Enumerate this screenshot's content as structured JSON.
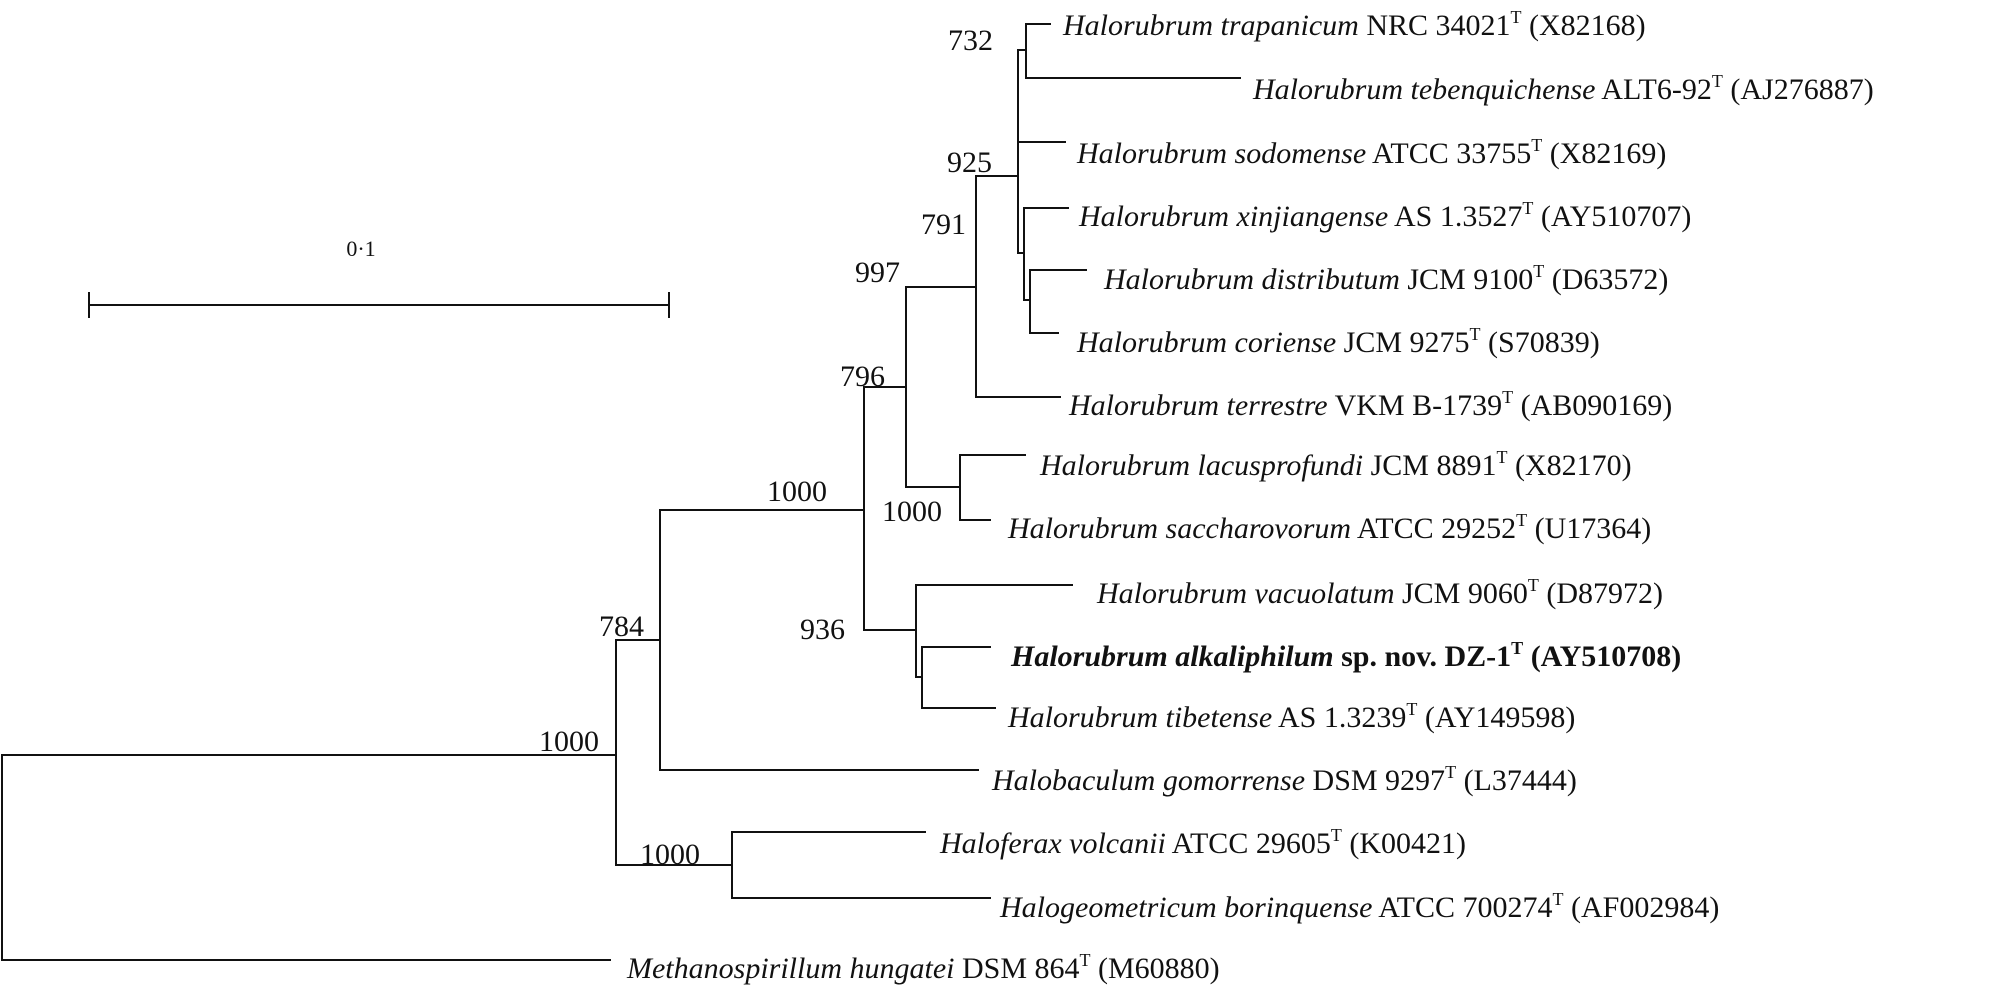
{
  "scale_bar": {
    "label": "0·1"
  },
  "taxa": [
    {
      "genus": "Halorubrum trapanicum",
      "strain": "NRC 34021",
      "sup": "T",
      "acc": "(X82168)"
    },
    {
      "genus": "Halorubrum tebenquichense",
      "strain": "ALT6-92",
      "sup": "T",
      "acc": "(AJ276887)"
    },
    {
      "genus": "Halorubrum sodomense",
      "strain": "ATCC 33755",
      "sup": "T",
      "acc": "(X82169)"
    },
    {
      "genus": "Halorubrum xinjiangense",
      "strain": "AS 1.3527",
      "sup": "T",
      "acc": "(AY510707)"
    },
    {
      "genus": "Halorubrum distributum",
      "strain": "JCM 9100",
      "sup": "T",
      "acc": "(D63572)"
    },
    {
      "genus": "Halorubrum coriense",
      "strain": "JCM 9275",
      "sup": "T",
      "acc": "(S70839)"
    },
    {
      "genus": "Halorubrum terrestre",
      "strain": "VKM B-1739",
      "sup": "T",
      "acc": "(AB090169)"
    },
    {
      "genus": "Halorubrum lacusprofundi",
      "strain": "JCM 8891",
      "sup": "T",
      "acc": "(X82170)"
    },
    {
      "genus": "Halorubrum saccharovorum",
      "strain": "ATCC 29252",
      "sup": "T",
      "acc": "(U17364)"
    },
    {
      "genus": "Halorubrum vacuolatum",
      "strain": "JCM 9060",
      "sup": "T",
      "acc": "(D87972)"
    },
    {
      "genus": "Halorubrum alkaliphilum",
      "strain": "sp. nov. DZ-1",
      "sup": "T",
      "acc": "(AY510708)",
      "bold": true
    },
    {
      "genus": "Halorubrum tibetense",
      "strain": "AS 1.3239",
      "sup": "T",
      "acc": "(AY149598)"
    },
    {
      "genus": "Halobaculum gomorrense",
      "strain": "DSM 9297",
      "sup": "T",
      "acc": "(L37444)"
    },
    {
      "genus": "Haloferax volcanii",
      "strain": "ATCC 29605",
      "sup": "T",
      "acc": "(K00421)"
    },
    {
      "genus": "Halogeometricum borinquense",
      "strain": "ATCC 700274",
      "sup": "T",
      "acc": "(AF002984)"
    },
    {
      "genus": "Methanospirillum hungatei",
      "strain": "DSM 864",
      "sup": "T",
      "acc": "(M60880)"
    }
  ],
  "bootstrap": [
    "732",
    "925",
    "791",
    "997",
    "796",
    "1000",
    "1000",
    "936",
    "784",
    "1000",
    "1000"
  ]
}
